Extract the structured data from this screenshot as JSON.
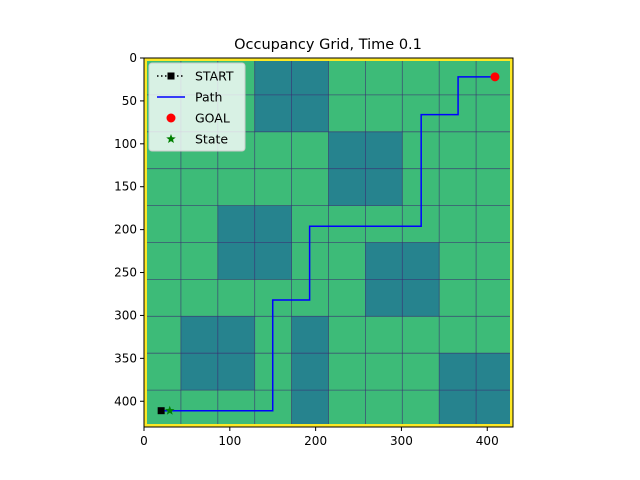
{
  "chart_data": {
    "type": "heatmap",
    "title": "Occupancy Grid, Time 0.1",
    "xlabel": "",
    "ylabel": "",
    "xlim": [
      0,
      430
    ],
    "ylim": [
      430,
      0
    ],
    "x_ticks": [
      0,
      100,
      200,
      300,
      400
    ],
    "y_ticks": [
      0,
      50,
      100,
      150,
      200,
      250,
      300,
      350,
      400
    ],
    "grid": false,
    "legend_position": "top-left",
    "colors": {
      "free": "#3dbb78",
      "occupied": "#26838e",
      "border": "#fde725",
      "path": "#0000ff",
      "goal": "#ff0000",
      "state": "#008000",
      "start": "#000000",
      "grid_line": "#3b2a72"
    },
    "cell_size": 43,
    "grid_size": [
      10,
      10
    ],
    "occupancy": [
      [
        0,
        0,
        0,
        1,
        1,
        0,
        0,
        0,
        0,
        0
      ],
      [
        0,
        0,
        0,
        1,
        1,
        0,
        0,
        0,
        0,
        0
      ],
      [
        0,
        0,
        0,
        0,
        0,
        1,
        1,
        0,
        0,
        0
      ],
      [
        0,
        0,
        0,
        0,
        0,
        1,
        1,
        0,
        0,
        0
      ],
      [
        0,
        0,
        1,
        1,
        0,
        0,
        0,
        0,
        0,
        0
      ],
      [
        0,
        0,
        1,
        1,
        0,
        0,
        1,
        1,
        0,
        0
      ],
      [
        0,
        0,
        0,
        0,
        0,
        0,
        1,
        1,
        0,
        0
      ],
      [
        0,
        1,
        1,
        0,
        1,
        0,
        0,
        0,
        0,
        0
      ],
      [
        0,
        1,
        1,
        0,
        1,
        0,
        0,
        0,
        1,
        1
      ],
      [
        0,
        0,
        0,
        0,
        1,
        0,
        0,
        0,
        1,
        1
      ]
    ],
    "series": [
      {
        "name": "START",
        "type": "marker",
        "marker": "square",
        "x": [
          20
        ],
        "y": [
          411
        ]
      },
      {
        "name": "Path",
        "type": "line",
        "x": [
          24,
          30,
          150,
          150,
          193,
          193,
          323,
          323,
          366,
          366,
          409
        ],
        "y": [
          411,
          411,
          411,
          282,
          282,
          196,
          196,
          66,
          66,
          22,
          22
        ]
      },
      {
        "name": "GOAL",
        "type": "marker",
        "marker": "circle",
        "x": [
          409
        ],
        "y": [
          22
        ]
      },
      {
        "name": "State",
        "type": "marker",
        "marker": "star",
        "x": [
          30
        ],
        "y": [
          411
        ]
      }
    ]
  }
}
